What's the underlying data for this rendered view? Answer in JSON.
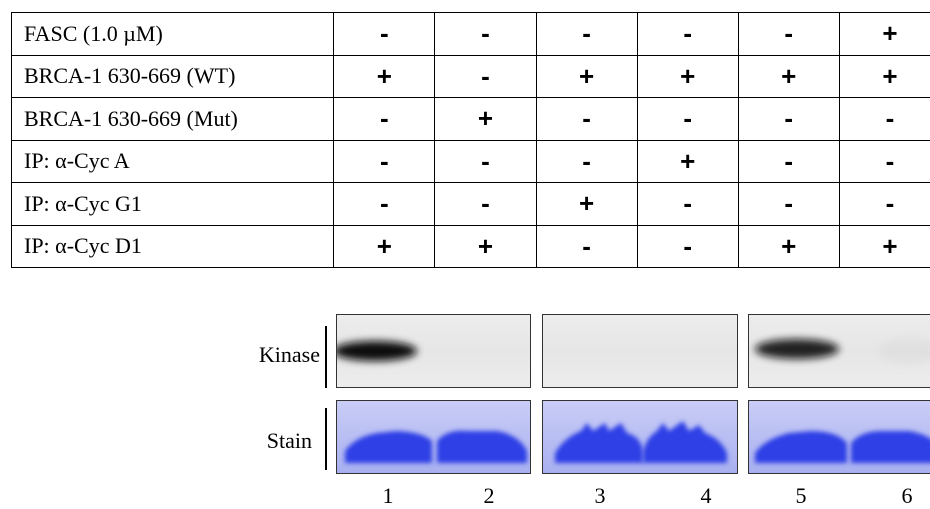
{
  "table": {
    "columns": [
      "1",
      "2",
      "3",
      "4",
      "5",
      "6"
    ],
    "rows": [
      {
        "label": "FASC (1.0 µM)",
        "values": [
          "-",
          "-",
          "-",
          "-",
          "-",
          "+"
        ]
      },
      {
        "label": "BRCA-1 630-669 (WT)",
        "values": [
          "+",
          "-",
          "+",
          "+",
          "+",
          "+"
        ]
      },
      {
        "label": "BRCA-1 630-669 (Mut)",
        "values": [
          "-",
          "+",
          "-",
          "-",
          "-",
          "-"
        ]
      },
      {
        "label": "IP: α-Cyc A",
        "values": [
          "-",
          "-",
          "-",
          "+",
          "-",
          "-"
        ]
      },
      {
        "label": "IP: α-Cyc G1",
        "values": [
          "-",
          "-",
          "+",
          "-",
          "-",
          "-"
        ]
      },
      {
        "label": "IP: α-Cyc D1",
        "values": [
          "+",
          "+",
          "-",
          "-",
          "+",
          "+"
        ]
      }
    ]
  },
  "gel": {
    "kinase_label": "Kinase",
    "stain_label": "Stain",
    "lanes": [
      "1",
      "2",
      "3",
      "4",
      "5",
      "6"
    ],
    "kinase_signal": [
      1.0,
      0.0,
      0.0,
      0.0,
      0.9,
      0.05
    ],
    "colors": {
      "stain": "#2f3fe6",
      "kinase_band": "#111111",
      "border": "#333333"
    }
  }
}
